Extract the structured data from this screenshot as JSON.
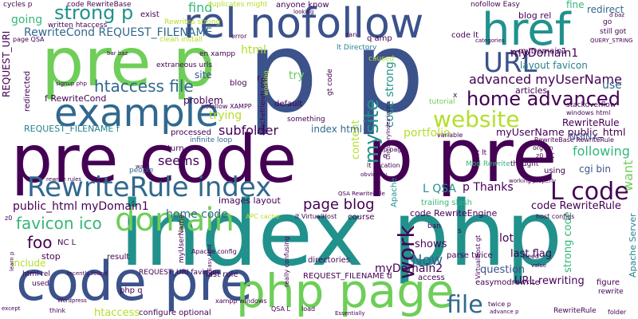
{
  "palette": {
    "dark_purple": "#440154",
    "indigo": "#3b528b",
    "blue": "#31688e",
    "teal_blue": "#26828e",
    "teal": "#21918c",
    "green": "#35b779",
    "lime": "#6ece58",
    "yellow_green": "#b5de2b",
    "yellow": "#fde725"
  },
  "words": [
    {
      "text": "index php",
      "color": "#21918c"
    },
    {
      "text": "pre code",
      "color": "#440154"
    },
    {
      "text": "p pre",
      "color": "#440154"
    },
    {
      "text": "p p",
      "color": "#3b528b"
    },
    {
      "text": "pre p",
      "color": "#6ece58"
    },
    {
      "text": "code pre",
      "color": "#3b528b"
    },
    {
      "text": "php page",
      "color": "#6ece58"
    },
    {
      "text": "rel nofollow",
      "color": "#3b528b"
    },
    {
      "text": "href",
      "color": "#21918c"
    },
    {
      "text": "example",
      "color": "#31688e"
    },
    {
      "text": "RewriteRule index",
      "color": "#31688e"
    },
    {
      "text": "domain",
      "color": "#6ece58"
    },
    {
      "text": "URL",
      "color": "#3b528b"
    },
    {
      "text": "home advanced",
      "color": "#440154"
    },
    {
      "text": "website",
      "color": "#b5de2b"
    },
    {
      "text": "strong p",
      "color": "#21918c"
    },
    {
      "text": "L code",
      "color": "#440154"
    },
    {
      "text": "file",
      "color": "#31688e"
    },
    {
      "text": "work",
      "color": "#440154"
    },
    {
      "text": "mysite",
      "color": "#21918c"
    },
    {
      "text": "advanced myUserName",
      "color": "#440154"
    },
    {
      "text": "htaccess file",
      "color": "#31688e"
    },
    {
      "text": "myDomain1",
      "color": "#440154"
    },
    {
      "text": "page blog",
      "color": "#440154"
    },
    {
      "text": "favicon ico",
      "color": "#35b779"
    },
    {
      "text": "RewriteCond REQUEST_FILENAME",
      "color": "#31688e"
    },
    {
      "text": "Now",
      "color": "#31688e"
    },
    {
      "text": "foo",
      "color": "#440154"
    },
    {
      "text": "code strong",
      "color": "#21918c"
    },
    {
      "text": "home code",
      "color": "#31688e"
    },
    {
      "text": "subfolder",
      "color": "#440154"
    },
    {
      "text": "trying",
      "color": "#b5de2b"
    },
    {
      "text": "seems",
      "color": "#440154"
    },
    {
      "text": "public_html myDomain1",
      "color": "#440154"
    },
    {
      "text": "myUserName public_html",
      "color": "#440154"
    },
    {
      "text": "find",
      "color": "#35b779"
    },
    {
      "text": "going",
      "color": "#35b779"
    },
    {
      "text": "use",
      "color": "#31688e"
    },
    {
      "text": "try",
      "color": "#6ece58"
    },
    {
      "text": "want",
      "color": "#6ece58"
    },
    {
      "text": "following",
      "color": "#35b779"
    },
    {
      "text": "code RewriteRule",
      "color": "#440154"
    },
    {
      "text": "myDomain2",
      "color": "#440154"
    },
    {
      "text": "URL rewriting",
      "color": "#440154"
    },
    {
      "text": "strong code",
      "color": "#35b779"
    },
    {
      "text": "layout favicon",
      "color": "#26828e"
    },
    {
      "text": "redirect",
      "color": "#31688e"
    },
    {
      "text": "fine",
      "color": "#35b779"
    },
    {
      "text": "html",
      "color": "#b5de2b"
    },
    {
      "text": "site",
      "color": "#3b528b"
    },
    {
      "text": "problem",
      "color": "#440154"
    },
    {
      "text": "content",
      "color": "#b5de2b"
    },
    {
      "text": "portfolio",
      "color": "#b5de2b"
    },
    {
      "text": "index html",
      "color": "#31688e"
    },
    {
      "text": "RewriteRule",
      "color": "#440154"
    },
    {
      "text": "NGINX",
      "color": "#3b528b"
    },
    {
      "text": "cgi bin",
      "color": "#3b528b"
    },
    {
      "text": "L QSA",
      "color": "#21918c"
    },
    {
      "text": "p Thanks",
      "color": "#440154"
    },
    {
      "text": "lot",
      "color": "#440154"
    },
    {
      "text": "question",
      "color": "#3b528b"
    },
    {
      "text": "last flag",
      "color": "#440154"
    },
    {
      "text": "code RewriteEngine",
      "color": "#440154"
    },
    {
      "text": "include",
      "color": "#b5de2b"
    },
    {
      "text": "htaccess",
      "color": "#b5de2b"
    },
    {
      "text": "shows",
      "color": "#440154"
    },
    {
      "text": "stop",
      "color": "#440154"
    },
    {
      "text": "REQUEST_URI",
      "color": "#440154"
    },
    {
      "text": "REQUEST_FILENAME f",
      "color": "#26828e"
    },
    {
      "text": "f RewriteCond",
      "color": "#440154"
    },
    {
      "text": "blog rel",
      "color": "#440154"
    },
    {
      "text": "articles",
      "color": "#440154"
    },
    {
      "text": "tutorial",
      "color": "#6ece58"
    },
    {
      "text": "exist",
      "color": "#440154"
    },
    {
      "text": "clean install",
      "color": "#b5de2b"
    },
    {
      "text": "en xampp",
      "color": "#440154"
    },
    {
      "text": "default",
      "color": "#440154"
    },
    {
      "text": "something",
      "color": "#440154"
    },
    {
      "text": "processed",
      "color": "#440154"
    },
    {
      "text": "infinite loop",
      "color": "#31688e"
    },
    {
      "text": "turn",
      "color": "#440154"
    },
    {
      "text": "people",
      "color": "#31688e"
    },
    {
      "text": "images layout",
      "color": "#440154"
    },
    {
      "text": "course",
      "color": "#440154"
    },
    {
      "text": "result",
      "color": "#440154"
    },
    {
      "text": "last rule",
      "color": "#440154"
    },
    {
      "text": "REQUEST_FILENAME d",
      "color": "#440154"
    },
    {
      "text": "directories",
      "color": "#440154"
    },
    {
      "text": "access",
      "color": "#440154"
    },
    {
      "text": "parse twice",
      "color": "#440154"
    },
    {
      "text": "easymodrewrite",
      "color": "#440154"
    },
    {
      "text": "figure",
      "color": "#440154"
    },
    {
      "text": "rewrite",
      "color": "#440154"
    },
    {
      "text": "configure optional",
      "color": "#440154"
    },
    {
      "text": "trailing slash",
      "color": "#35b779"
    },
    {
      "text": "Apache",
      "color": "#21918c"
    },
    {
      "text": "Apache Server",
      "color": "#26828e"
    },
    {
      "text": "nofollow XAMPP",
      "color": "#440154"
    },
    {
      "text": "anyone know",
      "color": "#440154"
    },
    {
      "text": "duplicates might",
      "color": "#b5de2b"
    },
    {
      "text": "code RewriteBase",
      "color": "#440154"
    },
    {
      "text": "written htaccess",
      "color": "#440154"
    },
    {
      "text": "Rewrites strong",
      "color": "#b5de2b"
    },
    {
      "text": "nofollow Easy",
      "color": "#440154"
    },
    {
      "text": "blog",
      "color": "#440154"
    },
    {
      "text": "code lt",
      "color": "#440154"
    },
    {
      "text": "q amp",
      "color": "#440154"
    },
    {
      "text": "myDomain1",
      "color": "#440154"
    },
    {
      "text": "lt Directory",
      "color": "#26828e"
    },
    {
      "text": "extraneous urls",
      "color": "#440154"
    },
    {
      "text": "still got",
      "color": "#440154"
    },
    {
      "text": "QUERY_STRING",
      "color": "#440154"
    },
    {
      "text": "stackoverflow",
      "color": "#440154"
    },
    {
      "text": "windows html",
      "color": "#440154"
    },
    {
      "text": "RewriteBase RewriteRule",
      "color": "#440154"
    },
    {
      "text": "org en",
      "color": "#440154"
    },
    {
      "text": "z0 NC",
      "color": "#440154"
    },
    {
      "text": "gt lt",
      "color": "#440154"
    },
    {
      "text": "thought",
      "color": "#440154"
    },
    {
      "text": "using",
      "color": "#440154"
    },
    {
      "text": "Mod Rewrite",
      "color": "#35b779"
    },
    {
      "text": "amp page",
      "color": "#440154"
    },
    {
      "text": "lt Location",
      "color": "#440154"
    },
    {
      "text": "QSA RewriteRule",
      "color": "#440154"
    },
    {
      "text": "lt VirtualHost",
      "color": "#440154"
    },
    {
      "text": "APC cache",
      "color": "#b5de2b"
    },
    {
      "text": "host configs",
      "color": "#440154"
    },
    {
      "text": "NC L",
      "color": "#440154"
    },
    {
      "text": "html rel",
      "color": "#440154"
    },
    {
      "text": "used",
      "color": "#440154"
    },
    {
      "text": "php q",
      "color": "#440154"
    },
    {
      "text": "REQUEST_URI favicon",
      "color": "#440154"
    },
    {
      "text": "Easy Mod",
      "color": "#440154"
    },
    {
      "text": "Apache config",
      "color": "#440154"
    },
    {
      "text": "really confusing",
      "color": "#440154"
    },
    {
      "text": "VirtualHost gt",
      "color": "#440154"
    },
    {
      "text": "ban",
      "color": "#440154"
    },
    {
      "text": "need",
      "color": "#440154"
    },
    {
      "text": "value",
      "color": "#440154"
    },
    {
      "text": "twice p",
      "color": "#440154"
    },
    {
      "text": "advance p",
      "color": "#440154"
    },
    {
      "text": "RewriteRule",
      "color": "#440154"
    },
    {
      "text": "folder",
      "color": "#440154"
    },
    {
      "text": "QSA L",
      "color": "#440154"
    },
    {
      "text": "load",
      "color": "#440154"
    },
    {
      "text": "think",
      "color": "#440154"
    },
    {
      "text": "except",
      "color": "#440154"
    },
    {
      "text": "Wordpress",
      "color": "#440154"
    },
    {
      "text": "cycles p",
      "color": "#440154"
    },
    {
      "text": "page QSA",
      "color": "#440154"
    },
    {
      "text": "bar baz",
      "color": "#440154"
    },
    {
      "text": "signup php",
      "color": "#440154"
    },
    {
      "text": "d baz",
      "color": "#440154"
    },
    {
      "text": "categories",
      "color": "#440154"
    },
    {
      "text": "tweak",
      "color": "#440154"
    },
    {
      "text": "gt code",
      "color": "#440154"
    },
    {
      "text": "apachefriends org",
      "color": "#440154"
    },
    {
      "text": "redirected",
      "color": "#440154"
    },
    {
      "text": "caused",
      "color": "#b5de2b"
    },
    {
      "text": "working properly",
      "color": "#440154"
    },
    {
      "text": "way",
      "color": "#440154"
    },
    {
      "text": "obviously",
      "color": "#440154"
    },
    {
      "text": "variable",
      "color": "#440154"
    },
    {
      "text": "DirectoryIndex index",
      "color": "#440154"
    },
    {
      "text": "error",
      "color": "#440154"
    },
    {
      "text": "ran",
      "color": "#440154"
    },
    {
      "text": "rewrite rules",
      "color": "#440154"
    },
    {
      "text": "myUserName",
      "color": "#440154"
    },
    {
      "text": "xampp windows",
      "color": "#440154"
    },
    {
      "text": "recently found",
      "color": "#440154"
    },
    {
      "text": "learn p",
      "color": "#440154"
    },
    {
      "text": "Essentially",
      "color": "#440154"
    },
    {
      "text": "looking",
      "color": "#440154"
    },
    {
      "text": "working",
      "color": "#b5de2b"
    },
    {
      "text": "x",
      "color": "#440154"
    },
    {
      "text": "z0",
      "color": "#440154"
    },
    {
      "text": "r",
      "color": "#440154"
    },
    {
      "text": "e",
      "color": "#440154"
    },
    {
      "text": "s",
      "color": "#440154"
    },
    {
      "text": "go",
      "color": "#440154"
    }
  ]
}
